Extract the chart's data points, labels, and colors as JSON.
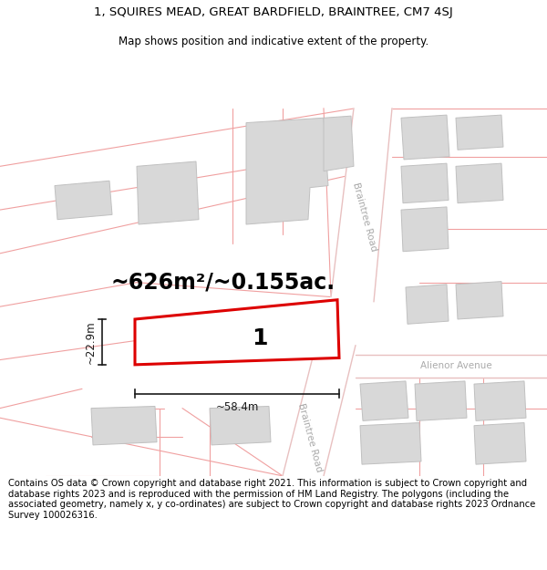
{
  "title_line1": "1, SQUIRES MEAD, GREAT BARDFIELD, BRAINTREE, CM7 4SJ",
  "title_line2": "Map shows position and indicative extent of the property.",
  "area_text": "~626m²/~0.155ac.",
  "width_label": "~58.4m",
  "height_label": "~22.9m",
  "plot_number": "1",
  "footer_text": "Contains OS data © Crown copyright and database right 2021. This information is subject to Crown copyright and database rights 2023 and is reproduced with the permission of HM Land Registry. The polygons (including the associated geometry, namely x, y co-ordinates) are subject to Crown copyright and database rights 2023 Ordnance Survey 100026316.",
  "bg_color": "#ffffff",
  "road_fill": "#f0f0f0",
  "road_edge": "#e8c0c0",
  "building_fill": "#d8d8d8",
  "building_edge": "#c0c0c0",
  "parcel_edge": "#f0a0a0",
  "road_label_color": "#aaaaaa",
  "highlight_edge": "#dd0000",
  "highlight_fill": "#ffffff",
  "dim_color": "#1a1a1a",
  "title_fontsize": 9.5,
  "subtitle_fontsize": 8.5,
  "area_fontsize": 17,
  "plot_num_fontsize": 18,
  "dim_fontsize": 8.5,
  "footer_fontsize": 7.2
}
